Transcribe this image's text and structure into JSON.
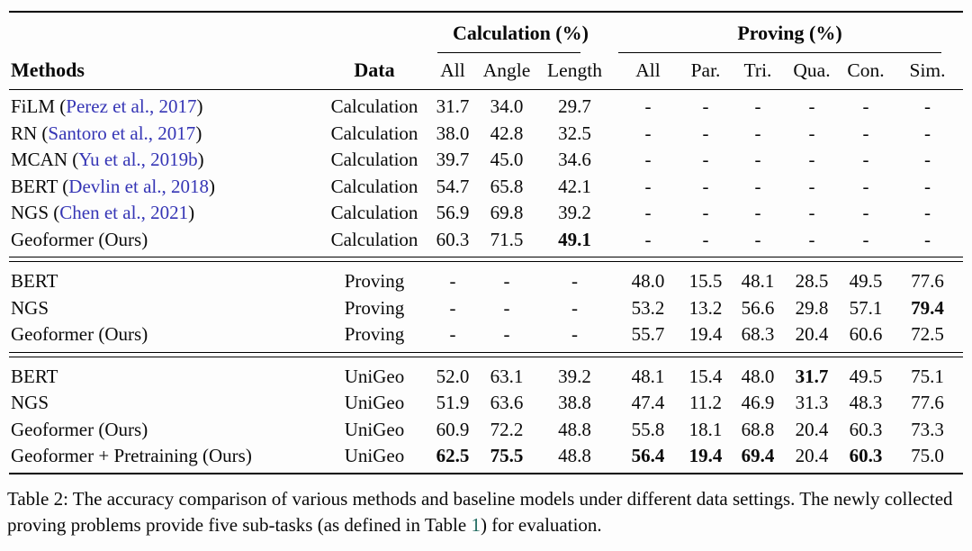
{
  "colors": {
    "citation": "#3535b5",
    "reference": "#1f6a5f",
    "text": "#0a0a0a",
    "rule": "#000000"
  },
  "table": {
    "group_headers": [
      {
        "label": "Calculation (%)"
      },
      {
        "label": "Proving (%)"
      }
    ],
    "methods_label": "Methods",
    "data_label": "Data",
    "columns": [
      "All",
      "Angle",
      "Length",
      "All",
      "Par.",
      "Tri.",
      "Qua.",
      "Con.",
      "Sim."
    ],
    "groups": [
      {
        "rows": [
          {
            "parts": [
              {
                "t": "FiLM (",
                "c": "text"
              },
              {
                "t": "Perez et al., 2017",
                "c": "cite"
              },
              {
                "t": ")",
                "c": "text"
              }
            ],
            "data": "Calculation",
            "values": [
              "31.7",
              "34.0",
              "29.7",
              "-",
              "-",
              "-",
              "-",
              "-",
              "-"
            ],
            "bold": []
          },
          {
            "parts": [
              {
                "t": "RN (",
                "c": "text"
              },
              {
                "t": "Santoro et al., 2017",
                "c": "cite"
              },
              {
                "t": ")",
                "c": "text"
              }
            ],
            "data": "Calculation",
            "values": [
              "38.0",
              "42.8",
              "32.5",
              "-",
              "-",
              "-",
              "-",
              "-",
              "-"
            ],
            "bold": []
          },
          {
            "parts": [
              {
                "t": "MCAN (",
                "c": "text"
              },
              {
                "t": "Yu et al., 2019b",
                "c": "cite"
              },
              {
                "t": ")",
                "c": "text"
              }
            ],
            "data": "Calculation",
            "values": [
              "39.7",
              "45.0",
              "34.6",
              "-",
              "-",
              "-",
              "-",
              "-",
              "-"
            ],
            "bold": []
          },
          {
            "parts": [
              {
                "t": "BERT (",
                "c": "text"
              },
              {
                "t": "Devlin et al., 2018",
                "c": "cite"
              },
              {
                "t": ")",
                "c": "text"
              }
            ],
            "data": "Calculation",
            "values": [
              "54.7",
              "65.8",
              "42.1",
              "-",
              "-",
              "-",
              "-",
              "-",
              "-"
            ],
            "bold": []
          },
          {
            "parts": [
              {
                "t": "NGS (",
                "c": "text"
              },
              {
                "t": "Chen et al., 2021",
                "c": "cite"
              },
              {
                "t": ")",
                "c": "text"
              }
            ],
            "data": "Calculation",
            "values": [
              "56.9",
              "69.8",
              "39.2",
              "-",
              "-",
              "-",
              "-",
              "-",
              "-"
            ],
            "bold": []
          },
          {
            "parts": [
              {
                "t": "Geoformer (Ours)",
                "c": "text"
              }
            ],
            "data": "Calculation",
            "values": [
              "60.3",
              "71.5",
              "49.1",
              "-",
              "-",
              "-",
              "-",
              "-",
              "-"
            ],
            "bold": [
              2
            ]
          }
        ]
      },
      {
        "rows": [
          {
            "parts": [
              {
                "t": "BERT",
                "c": "text"
              }
            ],
            "data": "Proving",
            "values": [
              "-",
              "-",
              "-",
              "48.0",
              "15.5",
              "48.1",
              "28.5",
              "49.5",
              "77.6"
            ],
            "bold": []
          },
          {
            "parts": [
              {
                "t": "NGS",
                "c": "text"
              }
            ],
            "data": "Proving",
            "values": [
              "-",
              "-",
              "-",
              "53.2",
              "13.2",
              "56.6",
              "29.8",
              "57.1",
              "79.4"
            ],
            "bold": [
              8
            ]
          },
          {
            "parts": [
              {
                "t": "Geoformer (Ours)",
                "c": "text"
              }
            ],
            "data": "Proving",
            "values": [
              "-",
              "-",
              "-",
              "55.7",
              "19.4",
              "68.3",
              "20.4",
              "60.6",
              "72.5"
            ],
            "bold": []
          }
        ]
      },
      {
        "rows": [
          {
            "parts": [
              {
                "t": "BERT",
                "c": "text"
              }
            ],
            "data": "UniGeo",
            "values": [
              "52.0",
              "63.1",
              "39.2",
              "48.1",
              "15.4",
              "48.0",
              "31.7",
              "49.5",
              "75.1"
            ],
            "bold": [
              6
            ]
          },
          {
            "parts": [
              {
                "t": "NGS",
                "c": "text"
              }
            ],
            "data": "UniGeo",
            "values": [
              "51.9",
              "63.6",
              "38.8",
              "47.4",
              "11.2",
              "46.9",
              "31.3",
              "48.3",
              "77.6"
            ],
            "bold": []
          },
          {
            "parts": [
              {
                "t": "Geoformer (Ours)",
                "c": "text"
              }
            ],
            "data": "UniGeo",
            "values": [
              "60.9",
              "72.2",
              "48.8",
              "55.8",
              "18.1",
              "68.8",
              "20.4",
              "60.3",
              "73.3"
            ],
            "bold": []
          },
          {
            "parts": [
              {
                "t": "Geoformer + Pretraining (Ours)",
                "c": "text"
              }
            ],
            "data": "UniGeo",
            "values": [
              "62.5",
              "75.5",
              "48.8",
              "56.4",
              "19.4",
              "69.4",
              "20.4",
              "60.3",
              "75.0"
            ],
            "bold": [
              0,
              1,
              3,
              4,
              5,
              7
            ]
          }
        ]
      }
    ]
  },
  "caption": {
    "parts": [
      {
        "t": "Table 2: The accuracy comparison of various methods and baseline models under different data settings. The newly collected proving problems provide five sub-tasks (as defined in Table ",
        "c": "text"
      },
      {
        "t": "1",
        "c": "ref"
      },
      {
        "t": ") for evaluation.",
        "c": "text"
      }
    ]
  }
}
